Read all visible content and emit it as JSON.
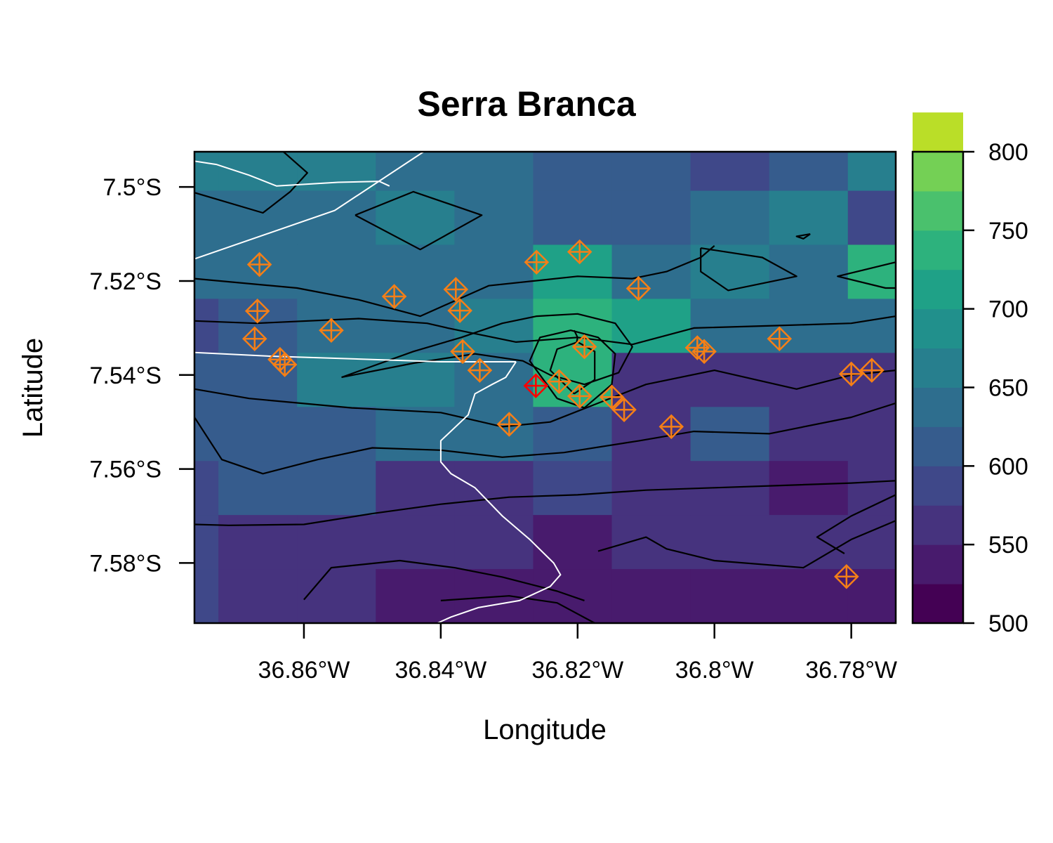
{
  "chart_data": {
    "type": "heatmap",
    "title": "Serra Branca",
    "xlabel": "Longitude",
    "ylabel": "Latitude",
    "xlim": [
      -36.876,
      -36.7735
    ],
    "ylim": [
      -7.5928,
      -7.4925
    ],
    "x_ticks": [
      {
        "value": -36.86,
        "label": "36.86°W"
      },
      {
        "value": -36.84,
        "label": "36.84°W"
      },
      {
        "value": -36.82,
        "label": "36.82°W"
      },
      {
        "value": -36.8,
        "label": "36.8°W"
      },
      {
        "value": -36.78,
        "label": "36.78°W"
      }
    ],
    "y_ticks": [
      {
        "value": -7.5,
        "label": "7.5°S"
      },
      {
        "value": -7.52,
        "label": "7.52°S"
      },
      {
        "value": -7.54,
        "label": "7.54°S"
      },
      {
        "value": -7.56,
        "label": "7.56°S"
      },
      {
        "value": -7.58,
        "label": "7.58°S"
      }
    ],
    "grid_lon_edges": [
      -36.876,
      -36.8725,
      -36.861,
      -36.8495,
      -36.838,
      -36.8265,
      -36.815,
      -36.8035,
      -36.792,
      -36.7805,
      -36.7735
    ],
    "grid_lat_edges": [
      -7.4925,
      -7.5008,
      -7.5123,
      -7.5238,
      -7.5353,
      -7.5468,
      -7.5583,
      -7.5698,
      -7.5813,
      -7.5928
    ],
    "values": [
      [
        665,
        665,
        655,
        640,
        625,
        615,
        615,
        595,
        610,
        665
      ],
      [
        640,
        640,
        640,
        660,
        640,
        620,
        610,
        630,
        665,
        590
      ],
      [
        625,
        625,
        625,
        640,
        640,
        700,
        630,
        670,
        640,
        730
      ],
      [
        595,
        620,
        625,
        640,
        665,
        735,
        715,
        630,
        625,
        630
      ],
      [
        620,
        620,
        650,
        665,
        640,
        730,
        570,
        565,
        565,
        565
      ],
      [
        605,
        620,
        610,
        630,
        640,
        600,
        570,
        600,
        565,
        565
      ],
      [
        595,
        620,
        600,
        565,
        565,
        575,
        565,
        565,
        545,
        565
      ],
      [
        595,
        570,
        570,
        565,
        565,
        535,
        570,
        565,
        560,
        560
      ],
      [
        595,
        570,
        570,
        540,
        540,
        540,
        540,
        540,
        540,
        540
      ]
    ],
    "colorbar": {
      "min": 500,
      "max": 800,
      "step": 25,
      "tick_values": [
        500,
        550,
        600,
        650,
        700,
        750,
        800
      ],
      "tick_labels": [
        "500",
        "550",
        "600",
        "650",
        "700",
        "750",
        "800"
      ],
      "colors": [
        "#440154",
        "#481B6D",
        "#46337E",
        "#3F4889",
        "#365C8D",
        "#2E6E8E",
        "#277F8E",
        "#21908C",
        "#1FA187",
        "#2DB27D",
        "#4AC16D",
        "#74D055",
        "#BADE28",
        "#FDE725"
      ]
    },
    "markers": {
      "orange_color": "#F57F17",
      "highlight_color": "#FF0000",
      "stations": [
        [
          -36.8665,
          -7.5165
        ],
        [
          -36.8668,
          -7.5264
        ],
        [
          -36.8672,
          -7.5323
        ],
        [
          -36.8635,
          -7.5367
        ],
        [
          -36.8628,
          -7.5378
        ],
        [
          -36.856,
          -7.5305
        ],
        [
          -36.8468,
          -7.5233
        ],
        [
          -36.8378,
          -7.5218
        ],
        [
          -36.8372,
          -7.5263
        ],
        [
          -36.8368,
          -7.535
        ],
        [
          -36.8343,
          -7.539
        ],
        [
          -36.83,
          -7.5505
        ],
        [
          -36.826,
          -7.516
        ],
        [
          -36.8197,
          -7.5138
        ],
        [
          -36.819,
          -7.534
        ],
        [
          -36.8227,
          -7.5414
        ],
        [
          -36.8197,
          -7.5445
        ],
        [
          -36.815,
          -7.5447
        ],
        [
          -36.8132,
          -7.5474
        ],
        [
          -36.8111,
          -7.5216
        ],
        [
          -36.8063,
          -7.551
        ],
        [
          -36.8025,
          -7.5342
        ],
        [
          -36.8015,
          -7.535
        ],
        [
          -36.7905,
          -7.5323
        ],
        [
          -36.78,
          -7.5398
        ],
        [
          -36.777,
          -7.539
        ],
        [
          -36.7807,
          -7.5829
        ]
      ],
      "highlight": [
        [
          -36.8261,
          -7.5423
        ]
      ]
    },
    "boundaries": [
      [
        [
          -36.876,
          -7.4945
        ],
        [
          -36.8728,
          -7.4952
        ],
        [
          -36.868,
          -7.4975
        ],
        [
          -36.864,
          -7.4998
        ],
        [
          -36.855,
          -7.499
        ],
        [
          -36.849,
          -7.4988
        ],
        [
          -36.8475,
          -7.4998
        ]
      ],
      [
        [
          -36.876,
          -7.5153
        ],
        [
          -36.8555,
          -7.505
        ],
        [
          -36.8425,
          -7.4925
        ]
      ],
      [
        [
          -36.876,
          -7.5352
        ],
        [
          -36.865,
          -7.536
        ],
        [
          -36.85,
          -7.5367
        ],
        [
          -36.84,
          -7.5372
        ],
        [
          -36.829,
          -7.5372
        ]
      ],
      [
        [
          -36.829,
          -7.5372
        ],
        [
          -36.8305,
          -7.5405
        ],
        [
          -36.8325,
          -7.542
        ],
        [
          -36.835,
          -7.544
        ],
        [
          -36.836,
          -7.5485
        ],
        [
          -36.84,
          -7.554
        ],
        [
          -36.84,
          -7.5585
        ],
        [
          -36.8385,
          -7.561
        ],
        [
          -36.835,
          -7.564
        ],
        [
          -36.831,
          -7.57
        ],
        [
          -36.827,
          -7.575
        ],
        [
          -36.8235,
          -7.58
        ],
        [
          -36.8225,
          -7.5825
        ],
        [
          -36.824,
          -7.585
        ],
        [
          -36.8285,
          -7.588
        ],
        [
          -36.8345,
          -7.5895
        ],
        [
          -36.8385,
          -7.5915
        ],
        [
          -36.8405,
          -7.5928
        ]
      ]
    ],
    "contours": [
      [
        [
          -36.876,
          -7.5012
        ],
        [
          -36.866,
          -7.5055
        ],
        [
          -36.862,
          -7.501
        ],
        [
          -36.8595,
          -7.497
        ],
        [
          -36.863,
          -7.4925
        ]
      ],
      [
        [
          -36.8525,
          -7.506
        ],
        [
          -36.844,
          -7.501
        ],
        [
          -36.834,
          -7.506
        ],
        [
          -36.843,
          -7.5133
        ],
        [
          -36.8525,
          -7.506
        ]
      ],
      [
        [
          -36.876,
          -7.5195
        ],
        [
          -36.861,
          -7.5215
        ],
        [
          -36.852,
          -7.524
        ],
        [
          -36.843,
          -7.5275
        ],
        [
          -36.833,
          -7.521
        ],
        [
          -36.82,
          -7.519
        ],
        [
          -36.812,
          -7.5195
        ],
        [
          -36.807,
          -7.518
        ],
        [
          -36.802,
          -7.515
        ],
        [
          -36.8,
          -7.5125
        ]
      ],
      [
        [
          -36.876,
          -7.5285
        ],
        [
          -36.867,
          -7.529
        ],
        [
          -36.852,
          -7.528
        ],
        [
          -36.842,
          -7.529
        ],
        [
          -36.839,
          -7.53
        ],
        [
          -36.829,
          -7.533
        ],
        [
          -36.82,
          -7.532
        ],
        [
          -36.812,
          -7.5335
        ],
        [
          -36.803,
          -7.53
        ],
        [
          -36.791,
          -7.5295
        ],
        [
          -36.78,
          -7.529
        ],
        [
          -36.7735,
          -7.5275
        ]
      ],
      [
        [
          -36.876,
          -7.549
        ],
        [
          -36.872,
          -7.558
        ],
        [
          -36.866,
          -7.561
        ],
        [
          -36.858,
          -7.558
        ],
        [
          -36.85,
          -7.5555
        ],
        [
          -36.84,
          -7.556
        ],
        [
          -36.831,
          -7.5575
        ],
        [
          -36.822,
          -7.5565
        ],
        [
          -36.811,
          -7.554
        ],
        [
          -36.803,
          -7.552
        ],
        [
          -36.792,
          -7.5525
        ],
        [
          -36.78,
          -7.549
        ],
        [
          -36.7735,
          -7.546
        ]
      ],
      [
        [
          -36.876,
          -7.543
        ],
        [
          -36.868,
          -7.545
        ],
        [
          -36.853,
          -7.547
        ],
        [
          -36.84,
          -7.548
        ],
        [
          -36.831,
          -7.551
        ],
        [
          -36.824,
          -7.55
        ],
        [
          -36.817,
          -7.546
        ],
        [
          -36.81,
          -7.542
        ],
        [
          -36.8,
          -7.539
        ],
        [
          -36.788,
          -7.543
        ],
        [
          -36.78,
          -7.54
        ],
        [
          -36.7735,
          -7.539
        ]
      ],
      [
        [
          -36.8545,
          -7.5405
        ],
        [
          -36.844,
          -7.5375
        ],
        [
          -36.835,
          -7.5355
        ],
        [
          -36.828,
          -7.537
        ],
        [
          -36.824,
          -7.54
        ],
        [
          -36.819,
          -7.542
        ],
        [
          -36.814,
          -7.5395
        ],
        [
          -36.812,
          -7.534
        ],
        [
          -36.8145,
          -7.529
        ],
        [
          -36.82,
          -7.527
        ],
        [
          -36.826,
          -7.5275
        ],
        [
          -36.831,
          -7.529
        ],
        [
          -36.837,
          -7.532
        ],
        [
          -36.844,
          -7.535
        ],
        [
          -36.8545,
          -7.5405
        ]
      ],
      [
        [
          -36.823,
          -7.545
        ],
        [
          -36.819,
          -7.547
        ],
        [
          -36.815,
          -7.542
        ],
        [
          -36.8145,
          -7.5355
        ],
        [
          -36.817,
          -7.532
        ],
        [
          -36.821,
          -7.5305
        ],
        [
          -36.8255,
          -7.532
        ],
        [
          -36.827,
          -7.537
        ],
        [
          -36.823,
          -7.545
        ]
      ],
      [
        [
          -36.8205,
          -7.544
        ],
        [
          -36.8175,
          -7.541
        ],
        [
          -36.8175,
          -7.535
        ],
        [
          -36.82,
          -7.533
        ],
        [
          -36.823,
          -7.5345
        ],
        [
          -36.824,
          -7.539
        ],
        [
          -36.8205,
          -7.544
        ]
      ],
      [
        [
          -36.8205,
          -7.5305
        ],
        [
          -36.82,
          -7.532
        ],
        [
          -36.8202,
          -7.5335
        ]
      ],
      [
        [
          -36.876,
          -7.5718
        ],
        [
          -36.871,
          -7.572
        ],
        [
          -36.86,
          -7.5718
        ],
        [
          -36.85,
          -7.5695
        ],
        [
          -36.84,
          -7.5675
        ],
        [
          -36.83,
          -7.566
        ],
        [
          -36.82,
          -7.5655
        ],
        [
          -36.81,
          -7.5645
        ],
        [
          -36.8,
          -7.564
        ],
        [
          -36.79,
          -7.5635
        ],
        [
          -36.78,
          -7.563
        ],
        [
          -36.7735,
          -7.5625
        ]
      ],
      [
        [
          -36.86,
          -7.5878
        ],
        [
          -36.856,
          -7.581
        ],
        [
          -36.846,
          -7.5795
        ],
        [
          -36.838,
          -7.581
        ],
        [
          -36.831,
          -7.583
        ],
        [
          -36.823,
          -7.586
        ],
        [
          -36.819,
          -7.588
        ]
      ],
      [
        [
          -36.84,
          -7.588
        ],
        [
          -36.83,
          -7.587
        ],
        [
          -36.823,
          -7.5885
        ],
        [
          -36.8175,
          -7.5928
        ]
      ],
      [
        [
          -36.817,
          -7.5775
        ],
        [
          -36.81,
          -7.5745
        ],
        [
          -36.807,
          -7.577
        ],
        [
          -36.8,
          -7.5795
        ],
        [
          -36.787,
          -7.581
        ],
        [
          -36.78,
          -7.575
        ],
        [
          -36.7735,
          -7.571
        ]
      ],
      [
        [
          -36.7735,
          -7.5655
        ],
        [
          -36.78,
          -7.57
        ],
        [
          -36.785,
          -7.5745
        ],
        [
          -36.781,
          -7.578
        ]
      ],
      [
        [
          -36.802,
          -7.513
        ],
        [
          -36.793,
          -7.515
        ],
        [
          -36.788,
          -7.519
        ],
        [
          -36.798,
          -7.522
        ],
        [
          -36.802,
          -7.518
        ],
        [
          -36.802,
          -7.513
        ]
      ],
      [
        [
          -36.7735,
          -7.516
        ],
        [
          -36.782,
          -7.519
        ],
        [
          -36.775,
          -7.5215
        ],
        [
          -36.7735,
          -7.5215
        ]
      ],
      [
        [
          -36.786,
          -7.51
        ],
        [
          -36.788,
          -7.5105
        ],
        [
          -36.787,
          -7.511
        ],
        [
          -36.786,
          -7.51
        ]
      ]
    ]
  }
}
